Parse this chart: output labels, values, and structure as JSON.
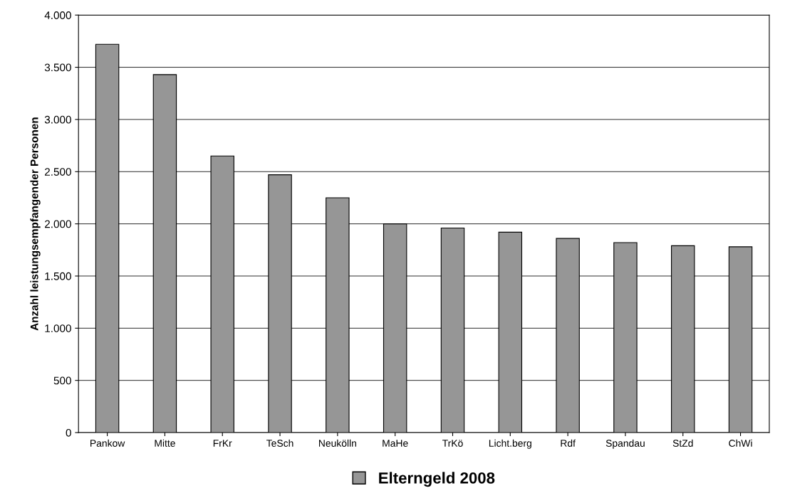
{
  "chart_data": {
    "type": "bar",
    "ylabel": "Anzahl leistungsempfangender Personen",
    "categories": [
      "Pankow",
      "Mitte",
      "FrKr",
      "TeSch",
      "Neukölln",
      "MaHe",
      "TrKö",
      "Licht.berg",
      "Rdf",
      "Spandau",
      "StZd",
      "ChWi"
    ],
    "series": [
      {
        "name": "Elterngeld 2008",
        "color": "#969696",
        "values": [
          3720,
          3430,
          2650,
          2470,
          2250,
          2000,
          1960,
          1920,
          1860,
          1820,
          1790,
          1780
        ]
      }
    ],
    "ylim": [
      0,
      4000
    ],
    "yticks": [
      0,
      500,
      {
        "value": 1000,
        "label": "1.000"
      },
      {
        "value": 1500,
        "label": "1.500"
      },
      {
        "value": 2000,
        "label": "2.000"
      },
      {
        "value": 2500,
        "label": "2.500"
      },
      {
        "value": 3000,
        "label": "3.000"
      },
      {
        "value": 3500,
        "label": "3.500"
      },
      {
        "value": 4000,
        "label": "4.000"
      }
    ],
    "grid": "y",
    "legend": "bottom"
  }
}
